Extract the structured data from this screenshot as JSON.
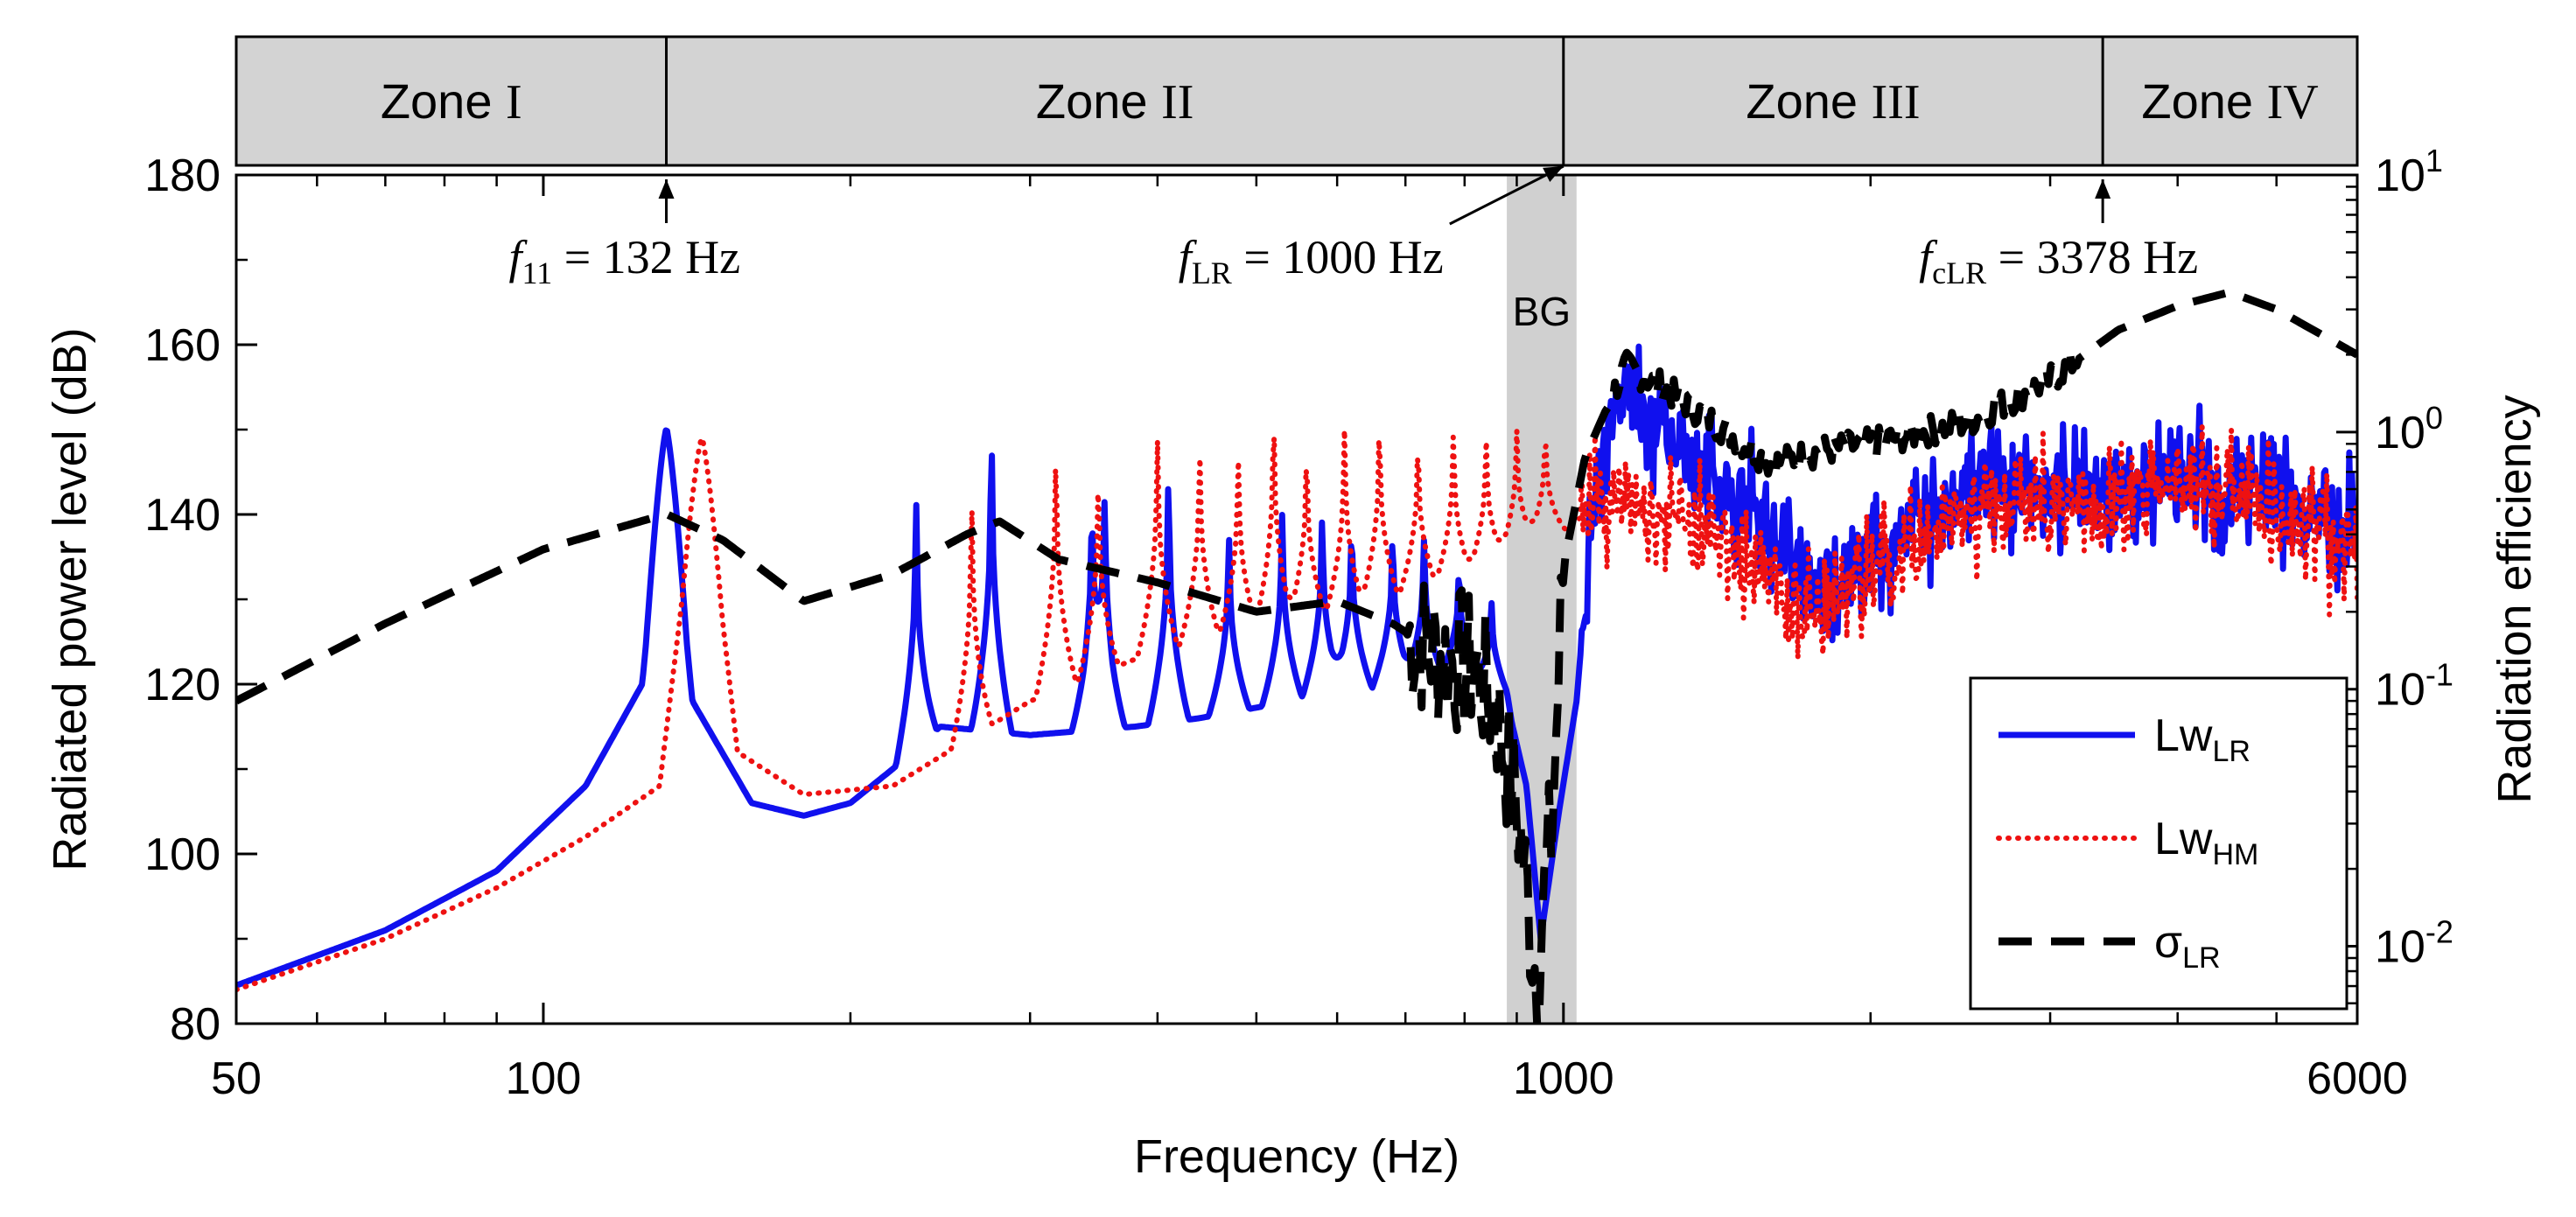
{
  "chart_data": {
    "type": "line",
    "xscale": "log",
    "xlim": [
      50,
      6000
    ],
    "xticks": [
      50,
      100,
      1000,
      6000
    ],
    "xtick_labels": [
      "50",
      "100",
      "1000",
      "6000"
    ],
    "xlabel": "Frequency (Hz)",
    "ylabel": "Radiated power level (dB)",
    "ylim": [
      80,
      180
    ],
    "yticks": [
      80,
      100,
      120,
      140,
      160,
      180
    ],
    "ytick_labels": [
      "80",
      "100",
      "120",
      "140",
      "160",
      "180"
    ],
    "y2label": "Radiation efficiency",
    "y2scale": "log",
    "y2lim": [
      0.005,
      10
    ],
    "y2ticks": [
      {
        "base": "10",
        "exp": "-2",
        "value": 0.01
      },
      {
        "base": "10",
        "exp": "-1",
        "value": 0.1
      },
      {
        "base": "10",
        "exp": "0",
        "value": 1
      },
      {
        "base": "10",
        "exp": "1",
        "value": 10
      }
    ],
    "zones": [
      {
        "label": "Zone I",
        "from": 50,
        "to": 132
      },
      {
        "label": "Zone II",
        "from": 132,
        "to": 1000
      },
      {
        "label": "Zone III",
        "from": 1000,
        "to": 3378
      },
      {
        "label": "Zone IV",
        "from": 3378,
        "to": 6000
      }
    ],
    "band_gap": {
      "label": "BG",
      "from": 880,
      "to": 1030
    },
    "annotations": [
      {
        "name": "f11",
        "main": "f",
        "sub": "11",
        "rest": " = 132 Hz",
        "freq": 132
      },
      {
        "name": "fLR",
        "main": "f",
        "sub": "LR",
        "rest": " = 1000 Hz",
        "freq": 1000
      },
      {
        "name": "fcLR",
        "main": "f",
        "sub": "cLR",
        "rest": " = 3378 Hz",
        "freq": 3378
      }
    ],
    "legend": {
      "position": "bottom-right"
    },
    "series": [
      {
        "name": "LwLR",
        "label_main": "Lw",
        "label_sub": "LR",
        "axis": "left",
        "color": "#1010ee",
        "style": "solid",
        "resonances": [
          {
            "f": 132,
            "peak": 150
          },
          {
            "f": 232,
            "peak": 142
          },
          {
            "f": 275,
            "peak": 150
          },
          {
            "f": 345,
            "peak": 141
          },
          {
            "f": 355,
            "peak": 142
          },
          {
            "f": 410,
            "peak": 145
          },
          {
            "f": 470,
            "peak": 138
          },
          {
            "f": 530,
            "peak": 140
          },
          {
            "f": 580,
            "peak": 140
          },
          {
            "f": 620,
            "peak": 139
          },
          {
            "f": 680,
            "peak": 138
          },
          {
            "f": 730,
            "peak": 137
          },
          {
            "f": 790,
            "peak": 134
          },
          {
            "f": 850,
            "peak": 130
          }
        ],
        "points": [
          [
            50,
            84.5
          ],
          [
            70,
            91
          ],
          [
            90,
            98
          ],
          [
            110,
            108
          ],
          [
            125,
            120
          ],
          [
            132,
            150
          ],
          [
            140,
            118
          ],
          [
            160,
            106
          ],
          [
            180,
            104.5
          ],
          [
            200,
            106
          ],
          [
            220,
            110
          ],
          [
            245,
            115
          ],
          [
            300,
            114
          ],
          [
            380,
            115
          ],
          [
            440,
            116
          ],
          [
            600,
            119
          ],
          [
            800,
            121
          ],
          [
            880,
            118
          ],
          [
            920,
            108
          ],
          [
            950,
            90
          ],
          [
            990,
            105
          ],
          [
            1030,
            118
          ],
          [
            1050,
            130
          ],
          [
            1080,
            145
          ],
          [
            1150,
            155
          ],
          [
            1250,
            150
          ],
          [
            1400,
            145
          ],
          [
            1600,
            138
          ],
          [
            1800,
            130
          ],
          [
            2000,
            135
          ],
          [
            2300,
            140
          ],
          [
            2700,
            145
          ],
          [
            3000,
            143
          ],
          [
            3500,
            142
          ],
          [
            4000,
            145
          ],
          [
            5000,
            142
          ],
          [
            6000,
            138
          ]
        ]
      },
      {
        "name": "LwHM",
        "label_main": "Lw",
        "label_sub": "HM",
        "axis": "left",
        "color": "#ee1111",
        "style": "dotted",
        "resonances": [
          {
            "f": 143,
            "peak": 149
          },
          {
            "f": 263,
            "peak": 142
          },
          {
            "f": 318,
            "peak": 148
          },
          {
            "f": 350,
            "peak": 145
          },
          {
            "f": 400,
            "peak": 149
          },
          {
            "f": 440,
            "peak": 148
          },
          {
            "f": 480,
            "peak": 147
          },
          {
            "f": 520,
            "peak": 152
          },
          {
            "f": 560,
            "peak": 148
          },
          {
            "f": 610,
            "peak": 150
          },
          {
            "f": 660,
            "peak": 151
          },
          {
            "f": 720,
            "peak": 149
          },
          {
            "f": 780,
            "peak": 150
          },
          {
            "f": 840,
            "peak": 149
          },
          {
            "f": 900,
            "peak": 150
          },
          {
            "f": 960,
            "peak": 150
          }
        ],
        "points": [
          [
            50,
            84
          ],
          [
            70,
            90
          ],
          [
            90,
            96
          ],
          [
            110,
            102
          ],
          [
            130,
            108
          ],
          [
            143,
            149
          ],
          [
            155,
            112
          ],
          [
            180,
            107
          ],
          [
            220,
            108
          ],
          [
            300,
            118
          ],
          [
            400,
            124
          ],
          [
            600,
            128
          ],
          [
            800,
            132
          ],
          [
            1000,
            138
          ],
          [
            1100,
            142
          ],
          [
            1300,
            140
          ],
          [
            1500,
            135
          ],
          [
            1800,
            128
          ],
          [
            2000,
            134
          ],
          [
            2500,
            140
          ],
          [
            3000,
            142
          ],
          [
            4000,
            143
          ],
          [
            5000,
            140
          ],
          [
            6000,
            137
          ]
        ]
      },
      {
        "name": "sigmaLR",
        "label_main": "σ",
        "label_sub": "LR",
        "axis": "right",
        "color": "#000000",
        "style": "dashed",
        "points": [
          [
            50,
            0.09
          ],
          [
            70,
            0.18
          ],
          [
            100,
            0.35
          ],
          [
            132,
            0.48
          ],
          [
            150,
            0.38
          ],
          [
            180,
            0.22
          ],
          [
            220,
            0.28
          ],
          [
            260,
            0.4
          ],
          [
            280,
            0.45
          ],
          [
            320,
            0.32
          ],
          [
            400,
            0.26
          ],
          [
            500,
            0.2
          ],
          [
            600,
            0.22
          ],
          [
            680,
            0.18
          ],
          [
            750,
            0.14
          ],
          [
            820,
            0.12
          ],
          [
            860,
            0.08
          ],
          [
            900,
            0.035
          ],
          [
            940,
            0.008
          ],
          [
            975,
            0.03
          ],
          [
            1000,
            0.3
          ],
          [
            1050,
            0.8
          ],
          [
            1150,
            1.8
          ],
          [
            1250,
            1.5
          ],
          [
            1400,
            1.1
          ],
          [
            1600,
            0.75
          ],
          [
            1800,
            0.85
          ],
          [
            2000,
            0.9
          ],
          [
            2500,
            1.1
          ],
          [
            3000,
            1.6
          ],
          [
            3500,
            2.5
          ],
          [
            4000,
            3.1
          ],
          [
            4500,
            3.5
          ],
          [
            5000,
            3.0
          ],
          [
            6000,
            2.0
          ]
        ]
      }
    ]
  }
}
